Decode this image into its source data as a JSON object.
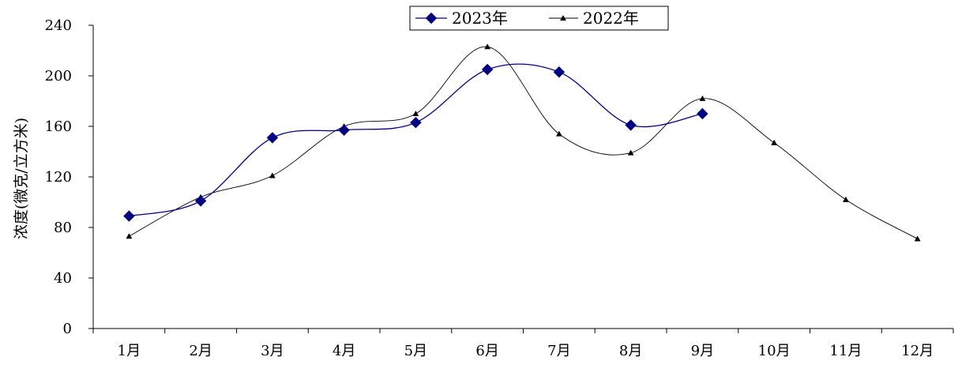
{
  "chart_data": {
    "type": "line",
    "title": "",
    "xlabel": "",
    "ylabel": "浓度(微克/立方米)",
    "ylim": [
      0,
      240
    ],
    "yticks": [
      0,
      40,
      80,
      120,
      160,
      200,
      240
    ],
    "categories": [
      "1月",
      "2月",
      "3月",
      "4月",
      "5月",
      "6月",
      "7月",
      "8月",
      "9月",
      "10月",
      "11月",
      "12月"
    ],
    "grid": false,
    "smooth": true,
    "legend_position": "top-center",
    "series": [
      {
        "name": "2023年",
        "color": "#000080",
        "marker": "diamond",
        "values": [
          89,
          101,
          151,
          157,
          163,
          205,
          203,
          161,
          170,
          null,
          null,
          null
        ]
      },
      {
        "name": "2022年",
        "color": "#000000",
        "marker": "triangle",
        "values": [
          73,
          104,
          121,
          160,
          170,
          223,
          154,
          139,
          182,
          147,
          102,
          71
        ]
      }
    ]
  }
}
